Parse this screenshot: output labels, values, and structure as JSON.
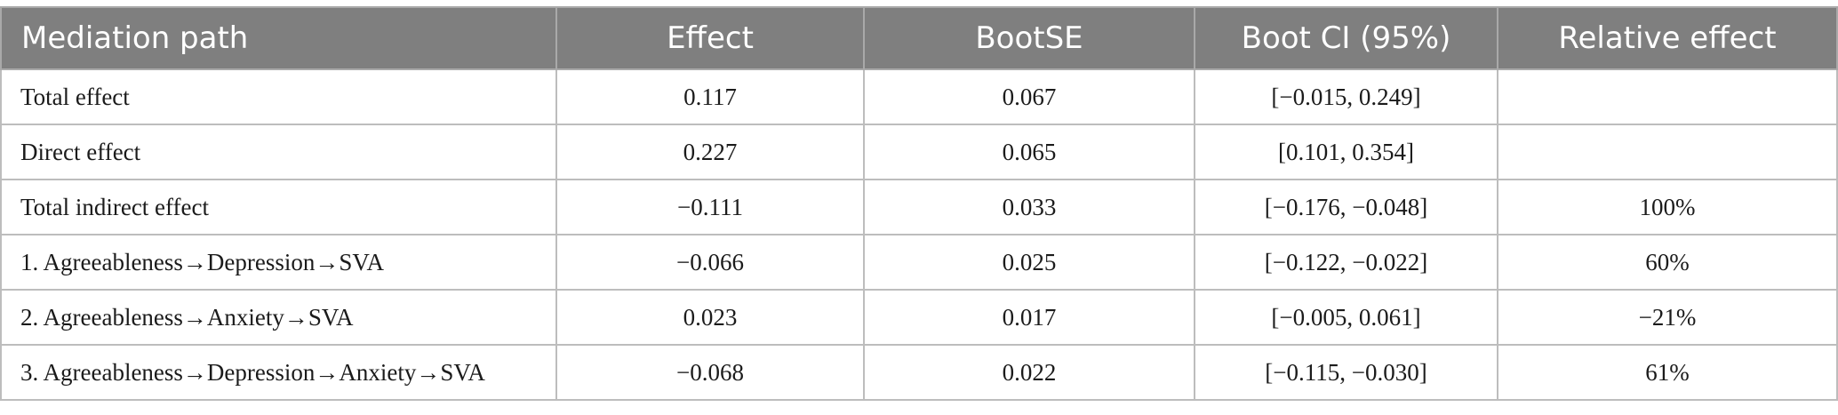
{
  "table": {
    "headers": [
      "Mediation path",
      "Effect",
      "BootSE",
      "Boot CI (95%)",
      "Relative effect"
    ],
    "rows": [
      [
        "Total effect",
        "0.117",
        "0.067",
        "[−0.015, 0.249]",
        ""
      ],
      [
        "Direct effect",
        "0.227",
        "0.065",
        "[0.101, 0.354]",
        ""
      ],
      [
        "Total indirect effect",
        "−0.111",
        "0.033",
        "[−0.176, −0.048]",
        "100%"
      ],
      [
        "1. Agreeableness→Depression→SVA",
        "−0.066",
        "0.025",
        "[−0.122, −0.022]",
        "60%"
      ],
      [
        "2. Agreeableness→Anxiety→SVA",
        "0.023",
        "0.017",
        "[−0.005, 0.061]",
        "−21%"
      ],
      [
        "3. Agreeableness→Depression→Anxiety→SVA",
        "−0.068",
        "0.022",
        "[−0.115, −0.030]",
        "61%"
      ]
    ]
  },
  "colors": {
    "header_bg": "#7f7f7f",
    "header_text": "#ffffff",
    "grid": "#bdbdbd"
  }
}
